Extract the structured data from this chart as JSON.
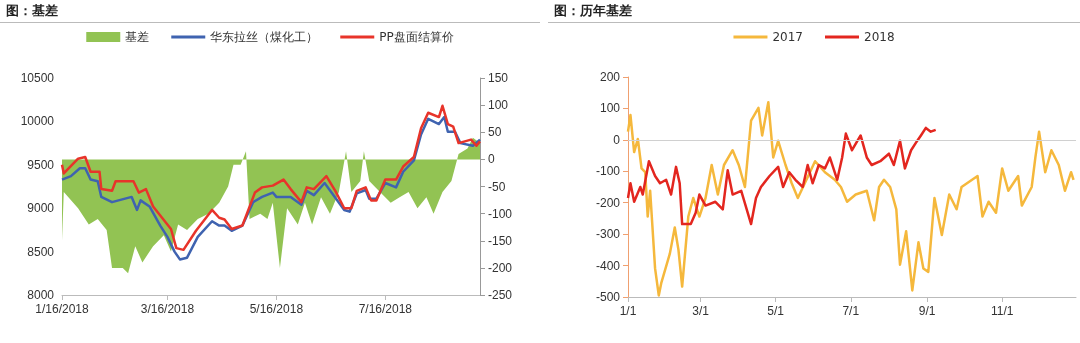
{
  "chart_data": [
    {
      "type": "line",
      "title": "图：基差",
      "legend": "top",
      "marker": "none",
      "xlim": [
        "2018-01-16",
        "2018-09-07"
      ],
      "xticks": [
        {
          "value": "2018-01-16",
          "label": "1/16/2018"
        },
        {
          "value": "2018-03-16",
          "label": "3/16/2018"
        },
        {
          "value": "2018-05-16",
          "label": "5/16/2018"
        },
        {
          "value": "2018-07-16",
          "label": "7/16/2018"
        }
      ],
      "ylim": [
        8000,
        10500
      ],
      "yticks": [
        8000,
        8500,
        9000,
        9500,
        10000,
        10500
      ],
      "y2lim": [
        -250,
        150
      ],
      "y2ticks": [
        -250,
        -200,
        -150,
        -100,
        -50,
        0,
        50,
        100,
        150
      ],
      "series": [
        {
          "name": "基差",
          "type": "area",
          "axis": "y2",
          "color": "#92c353",
          "x": [
            "2018-01-16",
            "2018-01-17",
            "2018-01-25",
            "2018-01-31",
            "2018-02-05",
            "2018-02-10",
            "2018-02-13",
            "2018-02-19",
            "2018-02-22",
            "2018-02-26",
            "2018-03-02",
            "2018-03-08",
            "2018-03-14",
            "2018-03-18",
            "2018-03-22",
            "2018-03-27",
            "2018-04-02",
            "2018-04-08",
            "2018-04-14",
            "2018-04-19",
            "2018-04-22",
            "2018-04-26",
            "2018-04-29",
            "2018-05-01",
            "2018-05-07",
            "2018-05-11",
            "2018-05-14",
            "2018-05-18",
            "2018-05-22",
            "2018-05-28",
            "2018-06-01",
            "2018-06-05",
            "2018-06-10",
            "2018-06-15",
            "2018-06-20",
            "2018-06-24",
            "2018-06-27",
            "2018-07-02",
            "2018-07-04",
            "2018-07-07",
            "2018-07-13",
            "2018-07-19",
            "2018-07-24",
            "2018-07-29",
            "2018-08-03",
            "2018-08-08",
            "2018-08-12",
            "2018-08-17",
            "2018-08-22",
            "2018-08-26",
            "2018-08-31",
            "2018-09-03",
            "2018-09-07"
          ],
          "values": [
            -150,
            -60,
            -90,
            -120,
            -110,
            -130,
            -200,
            -200,
            -210,
            -160,
            -190,
            -160,
            -140,
            -170,
            -120,
            -130,
            -110,
            -100,
            -80,
            -50,
            -10,
            -10,
            15,
            -110,
            -100,
            -110,
            -80,
            -200,
            -90,
            -120,
            -80,
            -120,
            -70,
            -100,
            -60,
            15,
            -60,
            -40,
            15,
            -40,
            -60,
            -80,
            -70,
            -60,
            -90,
            -70,
            -100,
            -60,
            -40,
            10,
            20,
            40,
            30
          ]
        },
        {
          "name": "华东拉丝（煤化工）",
          "color": "#3f63b0",
          "x": [
            "2018-01-16",
            "2018-01-21",
            "2018-01-26",
            "2018-01-29",
            "2018-02-01",
            "2018-02-05",
            "2018-02-07",
            "2018-02-13",
            "2018-02-24",
            "2018-02-27",
            "2018-03-01",
            "2018-03-06",
            "2018-03-12",
            "2018-03-16",
            "2018-03-20",
            "2018-03-23",
            "2018-03-27",
            "2018-04-02",
            "2018-04-10",
            "2018-04-14",
            "2018-04-17",
            "2018-04-21",
            "2018-04-27",
            "2018-05-03",
            "2018-05-08",
            "2018-05-14",
            "2018-05-16",
            "2018-05-24",
            "2018-05-30",
            "2018-06-02",
            "2018-06-06",
            "2018-06-12",
            "2018-06-17",
            "2018-06-23",
            "2018-06-26",
            "2018-06-30",
            "2018-07-05",
            "2018-07-07",
            "2018-07-11",
            "2018-07-16",
            "2018-07-22",
            "2018-07-26",
            "2018-08-01",
            "2018-08-05",
            "2018-08-09",
            "2018-08-15",
            "2018-08-18",
            "2018-08-20",
            "2018-08-24",
            "2018-08-27",
            "2018-09-03",
            "2018-09-07"
          ],
          "values": [
            9330,
            9370,
            9460,
            9460,
            9330,
            9310,
            9130,
            9070,
            9130,
            8980,
            9090,
            9020,
            8800,
            8670,
            8500,
            8410,
            8430,
            8670,
            8850,
            8800,
            8800,
            8740,
            8800,
            9070,
            9130,
            9180,
            9130,
            9130,
            9040,
            9200,
            9150,
            9290,
            9150,
            8980,
            8960,
            9170,
            9210,
            9110,
            9110,
            9290,
            9240,
            9420,
            9550,
            9850,
            10030,
            9970,
            10050,
            9880,
            9880,
            9750,
            9720,
            9790
          ]
        },
        {
          "name": "PP盘面结算价",
          "color": "#e8342a",
          "x": [
            "2018-01-16",
            "2018-01-17",
            "2018-01-25",
            "2018-01-29",
            "2018-02-01",
            "2018-02-06",
            "2018-02-07",
            "2018-02-13",
            "2018-02-15",
            "2018-02-25",
            "2018-02-28",
            "2018-03-04",
            "2018-03-08",
            "2018-03-13",
            "2018-03-18",
            "2018-03-21",
            "2018-03-25",
            "2018-04-01",
            "2018-04-10",
            "2018-04-14",
            "2018-04-17",
            "2018-04-21",
            "2018-04-27",
            "2018-05-04",
            "2018-05-08",
            "2018-05-14",
            "2018-05-20",
            "2018-05-24",
            "2018-05-30",
            "2018-06-02",
            "2018-06-06",
            "2018-06-13",
            "2018-06-18",
            "2018-06-23",
            "2018-06-27",
            "2018-06-30",
            "2018-07-05",
            "2018-07-08",
            "2018-07-11",
            "2018-07-16",
            "2018-07-22",
            "2018-07-26",
            "2018-08-01",
            "2018-08-05",
            "2018-08-09",
            "2018-08-15",
            "2018-08-17",
            "2018-08-20",
            "2018-08-23",
            "2018-08-26",
            "2018-09-02",
            "2018-09-05",
            "2018-09-07"
          ],
          "values": [
            9500,
            9400,
            9570,
            9590,
            9420,
            9420,
            9220,
            9200,
            9310,
            9310,
            9180,
            9220,
            9020,
            8890,
            8760,
            8540,
            8520,
            8740,
            8980,
            8890,
            8870,
            8760,
            8800,
            9180,
            9240,
            9260,
            9330,
            9220,
            9070,
            9240,
            9220,
            9370,
            9200,
            9000,
            9000,
            9200,
            9240,
            9090,
            9090,
            9330,
            9330,
            9480,
            9590,
            9920,
            10100,
            10050,
            10180,
            9970,
            9940,
            9750,
            9790,
            9720,
            9770
          ]
        }
      ]
    },
    {
      "type": "line",
      "title": "图：历年基差",
      "legend": "top",
      "marker": "none",
      "xlim": [
        "--01-01",
        "--12-31"
      ],
      "xticks": [
        {
          "value": "--01-01",
          "label": "1/1"
        },
        {
          "value": "--03-01",
          "label": "3/1"
        },
        {
          "value": "--05-01",
          "label": "5/1"
        },
        {
          "value": "--07-01",
          "label": "7/1"
        },
        {
          "value": "--09-01",
          "label": "9/1"
        },
        {
          "value": "--11-01",
          "label": "11/1"
        }
      ],
      "ylim": [
        -500,
        200
      ],
      "yticks": [
        -500,
        -400,
        -300,
        -200,
        -100,
        0,
        100,
        200
      ],
      "ref_lines": [
        {
          "axis": "y",
          "value": 0,
          "color": "#d0d0d0"
        }
      ],
      "series": [
        {
          "name": "2017",
          "color": "#f5b83c",
          "x": [
            "--01-01",
            "--01-03",
            "--01-06",
            "--01-09",
            "--01-12",
            "--01-15",
            "--01-17",
            "--01-19",
            "--01-23",
            "--01-26",
            "--01-28",
            "--02-04",
            "--02-08",
            "--02-11",
            "--02-14",
            "--02-19",
            "--02-23",
            "--02-28",
            "--03-05",
            "--03-10",
            "--03-15",
            "--03-20",
            "--03-27",
            "--04-01",
            "--04-06",
            "--04-11",
            "--04-17",
            "--04-20",
            "--04-25",
            "--04-29",
            "--05-03",
            "--05-09",
            "--05-14",
            "--05-19",
            "--05-26",
            "--06-02",
            "--06-10",
            "--06-18",
            "--06-23",
            "--06-28",
            "--07-05",
            "--07-14",
            "--07-20",
            "--07-24",
            "--07-28",
            "--08-02",
            "--08-07",
            "--08-10",
            "--08-15",
            "--08-20",
            "--08-25",
            "--08-29",
            "--09-02",
            "--09-07",
            "--09-13",
            "--09-19",
            "--09-25",
            "--09-29",
            "--10-12",
            "--10-16",
            "--10-21",
            "--10-27",
            "--11-01",
            "--11-06",
            "--11-14",
            "--11-17",
            "--11-25",
            "--11-28",
            "--12-01",
            "--12-06",
            "--12-11",
            "--12-17",
            "--12-22",
            "--12-27",
            "--12-29"
          ],
          "values": [
            26,
            79,
            -39,
            3,
            -91,
            -103,
            -244,
            -162,
            -409,
            -495,
            -456,
            -362,
            -279,
            -350,
            -467,
            -244,
            -185,
            -244,
            -185,
            -80,
            -174,
            -80,
            -33,
            -80,
            -150,
            61,
            102,
            14,
            120,
            -56,
            -3,
            -80,
            -138,
            -185,
            -127,
            -68,
            -103,
            -127,
            -150,
            -197,
            -174,
            -162,
            -256,
            -150,
            -127,
            -150,
            -221,
            -397,
            -291,
            -479,
            -326,
            -409,
            -420,
            -185,
            -303,
            -174,
            -221,
            -150,
            -115,
            -244,
            -197,
            -232,
            -91,
            -162,
            -115,
            -209,
            -150,
            -56,
            26,
            -103,
            -33,
            -80,
            -162,
            -103,
            -127
          ]
        },
        {
          "name": "2018",
          "color": "#e3261f",
          "x": [
            "--01-01",
            "--01-03",
            "--01-06",
            "--01-11",
            "--01-13",
            "--01-18",
            "--01-23",
            "--01-27",
            "--02-01",
            "--02-05",
            "--02-09",
            "--02-12",
            "--02-14",
            "--02-21",
            "--02-25",
            "--02-28",
            "--03-05",
            "--03-13",
            "--03-19",
            "--03-23",
            "--03-27",
            "--04-03",
            "--04-11",
            "--04-15",
            "--04-19",
            "--04-26",
            "--05-03",
            "--05-07",
            "--05-12",
            "--05-17",
            "--05-23",
            "--05-27",
            "--05-31",
            "--06-05",
            "--06-10",
            "--06-14",
            "--06-20",
            "--06-24",
            "--06-27",
            "--07-02",
            "--07-09",
            "--07-14",
            "--07-18",
            "--07-25",
            "--08-01",
            "--08-05",
            "--08-10",
            "--08-14",
            "--08-19",
            "--08-23",
            "--08-27",
            "--08-31",
            "--09-04",
            "--09-08"
          ],
          "values": [
            -185,
            -138,
            -197,
            -150,
            -174,
            -68,
            -115,
            -138,
            -127,
            -174,
            -86,
            -138,
            -268,
            -268,
            -232,
            -174,
            -209,
            -197,
            -221,
            -97,
            -174,
            -162,
            -268,
            -185,
            -150,
            -115,
            -86,
            -150,
            -103,
            -127,
            -150,
            -80,
            -138,
            -80,
            -91,
            -56,
            -127,
            -56,
            20,
            -33,
            14,
            -56,
            -80,
            -68,
            -44,
            -80,
            -3,
            -91,
            -33,
            -9,
            14,
            38,
            26,
            32
          ]
        }
      ]
    }
  ]
}
